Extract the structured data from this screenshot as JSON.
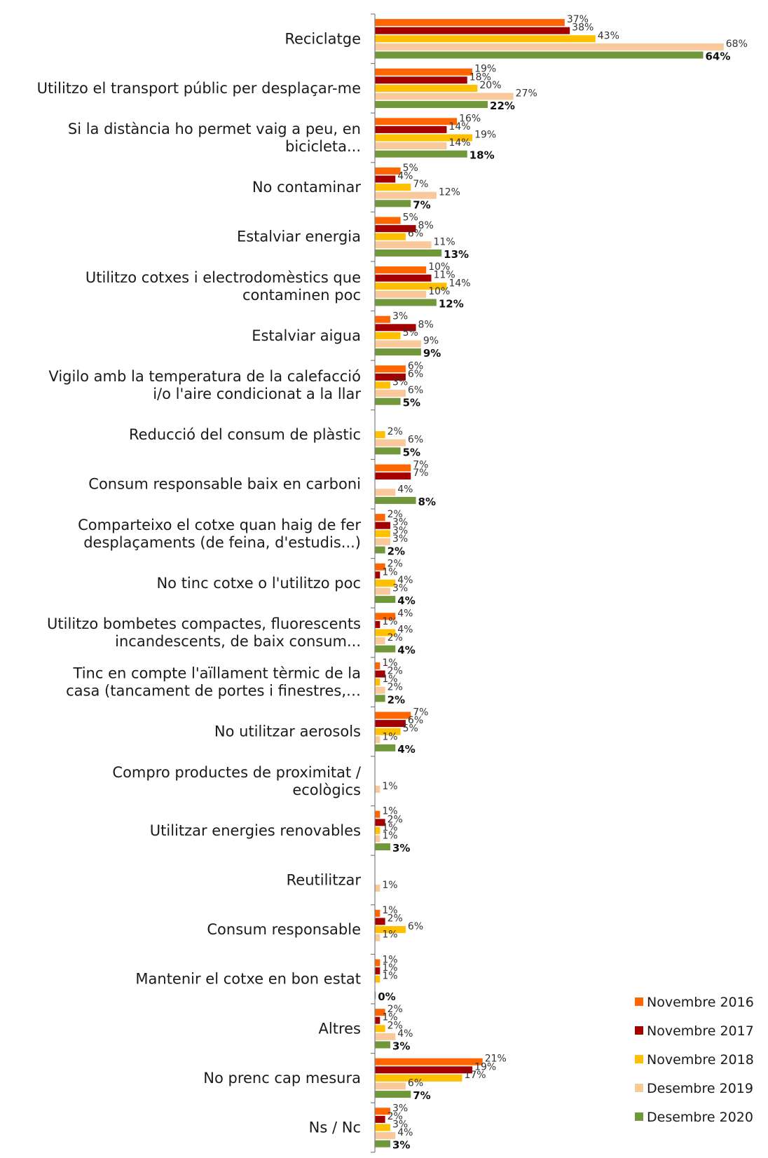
{
  "chart_data": {
    "type": "bar",
    "orientation": "horizontal",
    "title": "",
    "xlabel": "",
    "ylabel": "",
    "xlim": [
      0,
      72
    ],
    "grid": false,
    "legend_position": "bottom-right",
    "categories": [
      [
        "Reciclatge"
      ],
      [
        "Utilitzo el transport públic per desplaçar-me"
      ],
      [
        "Si la distància ho permet vaig a peu, en",
        "bicicleta..."
      ],
      [
        "No contaminar"
      ],
      [
        "Estalviar energia"
      ],
      [
        "Utilitzo cotxes i electrodomèstics que",
        "contaminen poc"
      ],
      [
        "Estalviar aigua"
      ],
      [
        "Vigilo amb la temperatura de la calefacció",
        "i/o l'aire condicionat a la llar"
      ],
      [
        "Reducció del consum de plàstic"
      ],
      [
        "Consum responsable baix en carboni"
      ],
      [
        "Comparteixo el cotxe quan haig de fer",
        "desplaçaments (de feina, d'estudis...)"
      ],
      [
        "No tinc cotxe o l'utilitzo poc"
      ],
      [
        "Utilitzo bombetes compactes, fluorescents",
        "incandescents, de baix consum..."
      ],
      [
        "Tinc en compte l'aïllament tèrmic de la",
        "casa (tancament de portes i finestres,…"
      ],
      [
        "No utilitzar aerosols"
      ],
      [
        "Compro productes de proximitat /",
        "ecològics"
      ],
      [
        "Utilitzar energies renovables"
      ],
      [
        "Reutilitzar"
      ],
      [
        "Consum responsable"
      ],
      [
        "Mantenir el cotxe en bon estat"
      ],
      [
        "Altres"
      ],
      [
        "No prenc cap mesura"
      ],
      [
        "Ns / Nc"
      ]
    ],
    "series": [
      {
        "name": "Novembre 2016",
        "color": "#FF6600",
        "values": [
          37,
          19,
          16,
          5,
          5,
          10,
          3,
          6,
          null,
          7,
          2,
          2,
          4,
          1,
          7,
          null,
          1,
          null,
          1,
          1,
          2,
          21,
          3
        ]
      },
      {
        "name": "Novembre 2017",
        "color": "#A50000",
        "values": [
          38,
          18,
          14,
          4,
          8,
          11,
          8,
          6,
          null,
          7,
          3,
          1,
          1,
          2,
          6,
          null,
          2,
          null,
          2,
          1,
          1,
          19,
          2
        ]
      },
      {
        "name": "Novembre 2018",
        "color": "#FFC000",
        "values": [
          43,
          20,
          19,
          7,
          6,
          14,
          5,
          3,
          2,
          null,
          3,
          4,
          4,
          1,
          5,
          null,
          1,
          null,
          6,
          1,
          2,
          17,
          3
        ]
      },
      {
        "name": "Desembre 2019",
        "color": "#F9C89B",
        "values": [
          68,
          27,
          14,
          12,
          11,
          10,
          9,
          6,
          6,
          4,
          3,
          3,
          2,
          2,
          1,
          1,
          1,
          1,
          1,
          null,
          4,
          6,
          4
        ]
      },
      {
        "name": "Desembre 2020",
        "color": "#70973A",
        "values": [
          64,
          22,
          18,
          7,
          13,
          12,
          9,
          5,
          5,
          8,
          2,
          4,
          4,
          2,
          4,
          null,
          3,
          null,
          null,
          0,
          3,
          7,
          3
        ]
      }
    ],
    "value_suffix": "%"
  }
}
